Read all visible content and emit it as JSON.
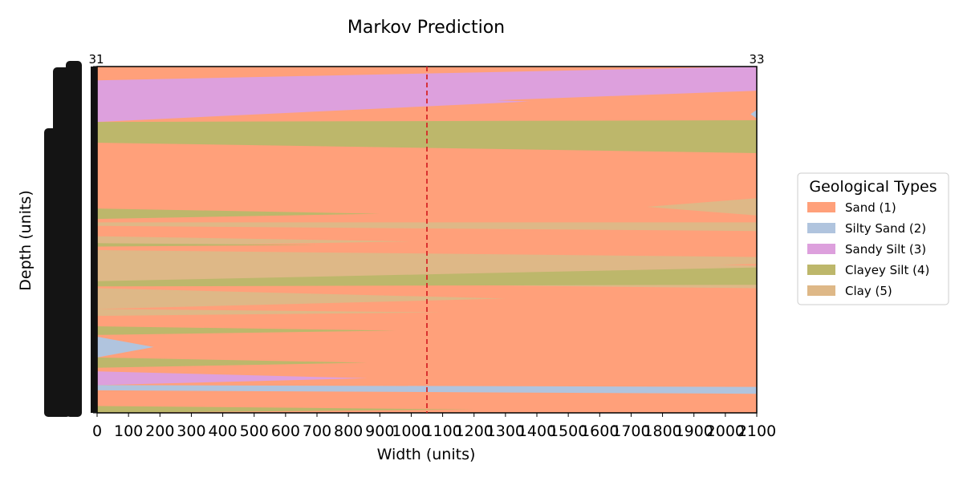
{
  "chart_data": {
    "type": "area",
    "title": "Markov Prediction",
    "xlabel": "Width (units)",
    "ylabel": "Depth (units)",
    "xlim": [
      0,
      2100
    ],
    "x_ticks": [
      "0",
      "100",
      "200",
      "300",
      "400",
      "500",
      "600",
      "700",
      "800",
      "900",
      "1000",
      "1100",
      "1200",
      "1300",
      "1400",
      "1500",
      "1600",
      "1700",
      "1800",
      "1900",
      "2000",
      "2100"
    ],
    "depth_range": [
      0,
      100
    ],
    "left_well_label": "31",
    "right_well_label": "33",
    "prediction_line_x": 1050,
    "prediction_line_color": "#d62728",
    "legend": {
      "title": "Geological Types",
      "placement": "right",
      "entries": [
        {
          "code": 1,
          "label": "Sand (1)",
          "color": "#FFA07A"
        },
        {
          "code": 2,
          "label": "Silty Sand (2)",
          "color": "#B0C4DE"
        },
        {
          "code": 3,
          "label": "Sandy Silt (3)",
          "color": "#DDA0DD"
        },
        {
          "code": 4,
          "label": "Clayey Silt (4)",
          "color": "#BDB76B"
        },
        {
          "code": 5,
          "label": "Clay (5)",
          "color": "#DEB887"
        }
      ]
    },
    "background_type": 1,
    "layers": [
      {
        "type": 1,
        "l": [
          0,
          4
        ],
        "r": null,
        "end_x": 600
      },
      {
        "type": 3,
        "l": [
          4,
          16
        ],
        "r": [
          0,
          7
        ],
        "end_x": null
      },
      {
        "type": 1,
        "l": null,
        "r": [
          7,
          12.5
        ],
        "start_x": 1270
      },
      {
        "type": 2,
        "l": null,
        "r": [
          12.5,
          15
        ],
        "start_x": 2080
      },
      {
        "type": 4,
        "l": [
          16,
          22
        ],
        "r": [
          15.5,
          25
        ],
        "end_x": null
      },
      {
        "type": 5,
        "l": null,
        "r": [
          38,
          43
        ],
        "start_x": 1750
      },
      {
        "type": 4,
        "l": [
          41,
          44
        ],
        "r": null,
        "end_x": 900
      },
      {
        "type": 5,
        "l": [
          45,
          46
        ],
        "r": [
          45,
          47.5
        ],
        "end_x": null
      },
      {
        "type": 5,
        "l": [
          49,
          52
        ],
        "r": null,
        "end_x": 1000
      },
      {
        "type": 4,
        "l": [
          51,
          52
        ],
        "r": null,
        "end_x": 700
      },
      {
        "type": 5,
        "l": [
          53,
          62
        ],
        "r": [
          55,
          57
        ],
        "end_x": null
      },
      {
        "type": 5,
        "l": [
          53,
          62
        ],
        "r": [
          57.5,
          64
        ],
        "end_x": null
      },
      {
        "type": 4,
        "l": [
          62,
          63.5
        ],
        "r": [
          58,
          63
        ],
        "end_x": null
      },
      {
        "type": 5,
        "l": [
          64,
          70
        ],
        "r": null,
        "end_x": 1300
      },
      {
        "type": 5,
        "l": [
          70,
          72
        ],
        "r": null,
        "end_x": 1100
      },
      {
        "type": 4,
        "l": [
          75,
          77.5
        ],
        "r": null,
        "end_x": 950
      },
      {
        "type": 2,
        "l": [
          78,
          84
        ],
        "r": null,
        "end_x": 180
      },
      {
        "type": 4,
        "l": [
          84,
          87
        ],
        "r": null,
        "end_x": 860
      },
      {
        "type": 3,
        "l": [
          88,
          92
        ],
        "r": null,
        "end_x": 860
      },
      {
        "type": 2,
        "l": [
          92,
          93.5
        ],
        "r": [
          92.5,
          94.5
        ],
        "end_x": null
      },
      {
        "type": 4,
        "l": [
          98,
          100
        ],
        "r": null,
        "end_x": 1200
      }
    ]
  }
}
